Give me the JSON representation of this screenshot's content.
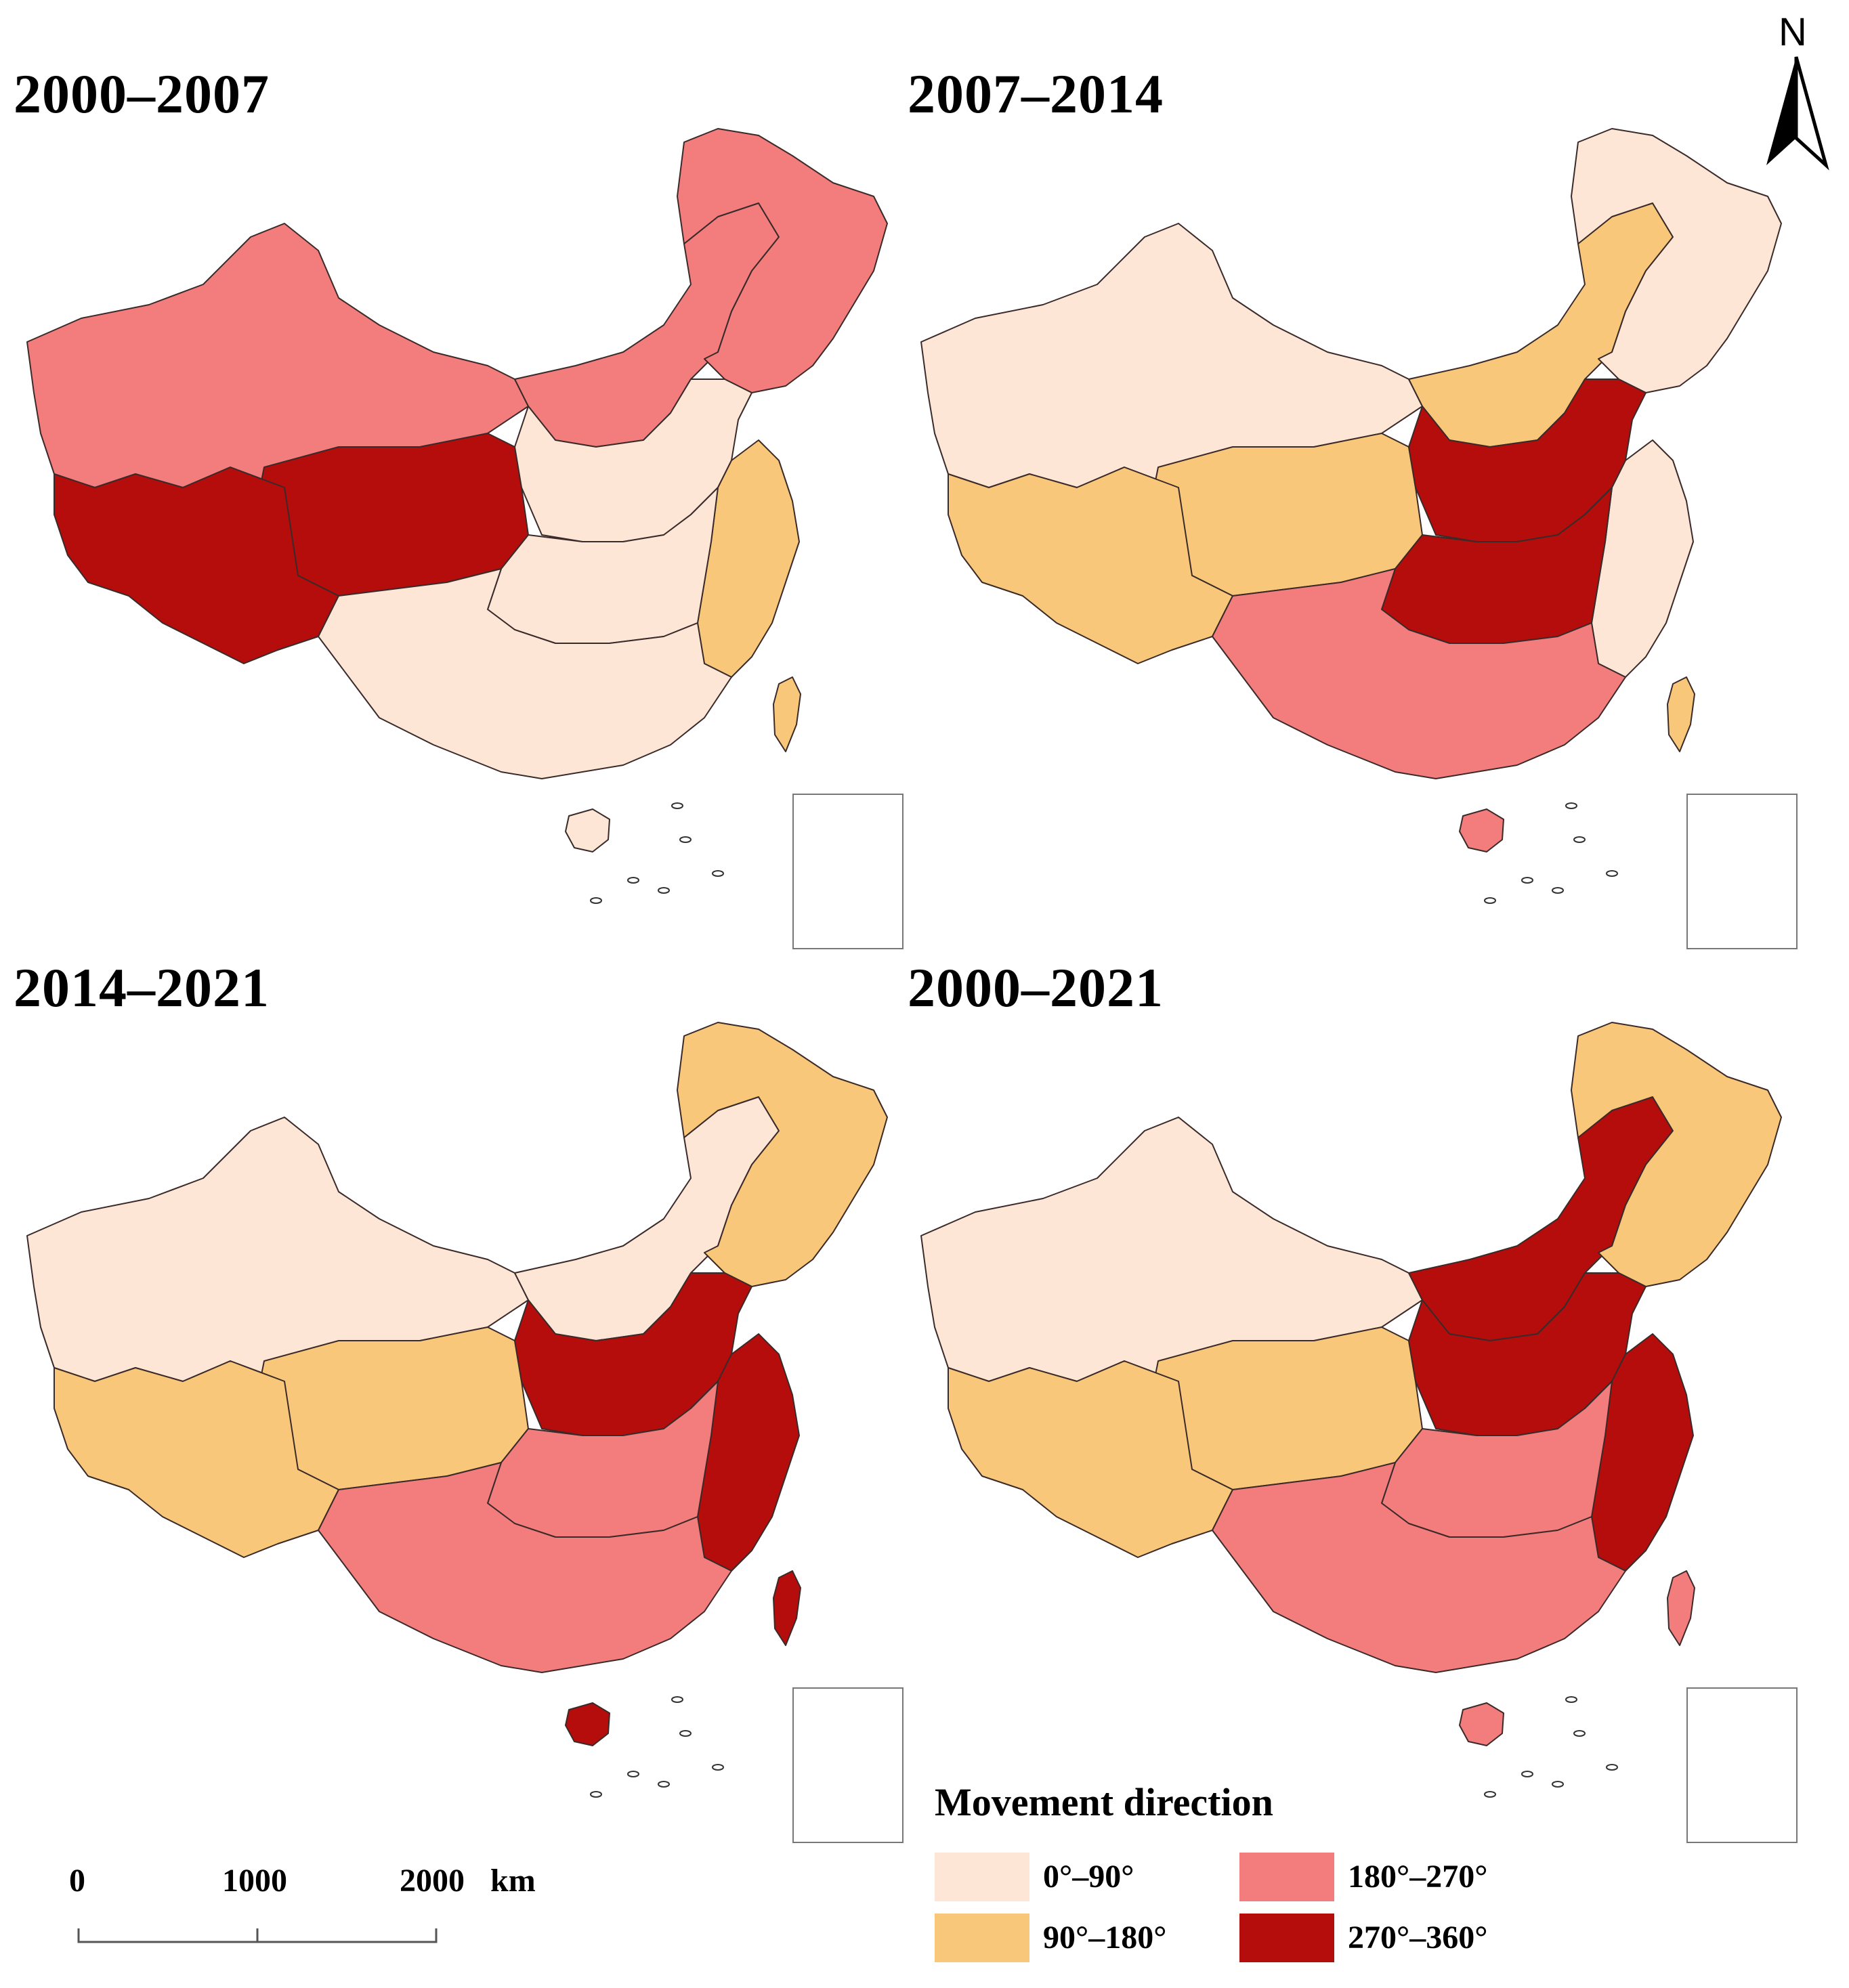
{
  "palette": {
    "c0": "#fde6d6",
    "c1": "#f9c77a",
    "c2": "#f37c7c",
    "c3": "#b50c0c",
    "stroke": "#3a2a2a"
  },
  "panels": [
    {
      "title": "2000–2007",
      "zones": {
        "northwest": "c2",
        "tibet": "c3",
        "qinghai": "c3",
        "inner_mongolia": "c2",
        "northeast": "c2",
        "north_china": "c0",
        "central": "c0",
        "south": "c0",
        "east": "c1",
        "hainan": "c0",
        "taiwan": "c1"
      }
    },
    {
      "title": "2007–2014",
      "zones": {
        "northwest": "c0",
        "tibet": "c1",
        "qinghai": "c1",
        "inner_mongolia": "c1",
        "northeast": "c0",
        "north_china": "c3",
        "central": "c3",
        "south": "c2",
        "east": "c0",
        "hainan": "c2",
        "taiwan": "c1"
      }
    },
    {
      "title": "2014–2021",
      "zones": {
        "northwest": "c0",
        "tibet": "c1",
        "qinghai": "c1",
        "inner_mongolia": "c0",
        "northeast": "c1",
        "north_china": "c3",
        "central": "c2",
        "south": "c2",
        "east": "c3",
        "hainan": "c3",
        "taiwan": "c3"
      }
    },
    {
      "title": "2000–2021",
      "zones": {
        "northwest": "c0",
        "tibet": "c1",
        "qinghai": "c1",
        "inner_mongolia": "c3",
        "northeast": "c1",
        "north_china": "c3",
        "central": "c2",
        "south": "c2",
        "east": "c3",
        "hainan": "c2",
        "taiwan": "c2"
      }
    }
  ],
  "north_arrow": {
    "label": "N"
  },
  "legend": {
    "title": "Movement direction",
    "items": [
      {
        "label": "0°–90°",
        "color": "c0"
      },
      {
        "label": "180°–270°",
        "color": "c2"
      },
      {
        "label": "90°–180°",
        "color": "c1"
      },
      {
        "label": "270°–360°",
        "color": "c3"
      }
    ]
  },
  "scale_bar": {
    "labels": [
      "0",
      "1000",
      "2000"
    ],
    "unit": "km"
  }
}
